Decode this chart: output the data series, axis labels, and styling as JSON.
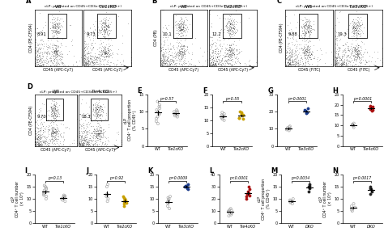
{
  "flow_panels": {
    "A": {
      "title": "cLP: pregated on CD45+CD3e+ (% CD45+)",
      "wt_val": "8.91",
      "ko_val": "9.73",
      "xlabel": "CD45 (APC-Cy7)",
      "ylabel": "CD4 (PE-CF594)",
      "ko_label": "Tle1cKO"
    },
    "B": {
      "title": "cLP: pregated on CD45+CD3e+ (% CD45+)",
      "wt_val": "10.1",
      "ko_val": "12.2",
      "xlabel": "CD45 (APC-Cy7)",
      "ylabel": "CD4 (PB)",
      "ko_label": "Tle2cKO"
    },
    "C": {
      "title": "cLP: pregated on CD45+CD3e+ (% CD45+)",
      "wt_val": "9.88",
      "ko_val": "19.3",
      "xlabel": "CD45 (FITC)",
      "ylabel": "CD4 (PE-CF594)",
      "ko_label": "Tle3cKO"
    },
    "D": {
      "title": "cLP: pregated on CD45+CD3e+ (% CD45+)",
      "wt_val": "9.70",
      "ko_val": "18.3",
      "xlabel": "CD45 (APC-Cy7)",
      "ylabel": "CD4 (PE-CF594)",
      "ko_label": "Tle4cKO"
    }
  },
  "scatter_panels": {
    "E": {
      "pval": "p=0.57",
      "xlabel_wt": "WT",
      "xlabel_ko": "Tle1cKO",
      "ylabel": "cLP\nCD4+ T cell proportion\n(% CD45+)",
      "ylim": [
        0,
        15
      ],
      "yticks": [
        0,
        5,
        10,
        15
      ],
      "wt_data": [
        8.0,
        9.2,
        10.0,
        10.5,
        11.0,
        11.5,
        12.0,
        8.5,
        7.2,
        9.5,
        13.0,
        6.5
      ],
      "ko_data": [
        8.5,
        9.0,
        9.5,
        10.0,
        10.5,
        9.2,
        9.8,
        10.2,
        8.8,
        9.3
      ],
      "wt_color": "#aaaaaa",
      "ko_color": "#aaaaaa",
      "ko_filled": false
    },
    "F": {
      "pval": "p=0.55",
      "xlabel_wt": "WT",
      "xlabel_ko": "Tle2cKO",
      "ylabel": "",
      "ylim": [
        0,
        20
      ],
      "yticks": [
        0,
        5,
        10,
        15,
        20
      ],
      "wt_data": [
        10.0,
        11.0,
        12.0,
        12.5,
        13.0,
        11.5,
        10.5,
        11.8
      ],
      "ko_data": [
        10.5,
        11.0,
        12.0,
        13.0,
        12.5,
        11.8,
        10.8,
        13.5,
        12.2
      ],
      "wt_color": "#aaaaaa",
      "ko_color": "#c8a000",
      "ko_filled": true
    },
    "G": {
      "pval": "p=0.0001",
      "xlabel_wt": "WT",
      "xlabel_ko": "Tle3cKO",
      "ylabel": "",
      "ylim": [
        0,
        30
      ],
      "yticks": [
        0,
        10,
        20,
        30
      ],
      "wt_data": [
        9.0,
        10.0,
        10.5,
        11.0,
        11.5,
        10.0,
        9.5,
        10.2
      ],
      "ko_data": [
        19.0,
        20.0,
        21.0,
        22.0,
        20.5,
        19.5
      ],
      "wt_color": "#aaaaaa",
      "ko_color": "#1a3a8a",
      "ko_filled": true
    },
    "H": {
      "pval": "p=0.0001",
      "xlabel_wt": "WT",
      "xlabel_ko": "Tle4cKO",
      "ylabel": "",
      "ylim": [
        0,
        25
      ],
      "yticks": [
        0,
        5,
        10,
        15,
        20,
        25
      ],
      "wt_data": [
        9.0,
        10.0,
        10.5,
        11.0,
        10.2,
        9.8,
        10.5,
        10.0
      ],
      "ko_data": [
        17.0,
        18.0,
        19.0,
        19.5,
        18.5,
        17.5,
        18.0,
        19.2
      ],
      "wt_color": "#aaaaaa",
      "ko_color": "#aa1111",
      "ko_filled": true
    },
    "I": {
      "pval": "p=0.13",
      "xlabel_wt": "WT",
      "xlabel_ko": "Tle1cKO",
      "ylabel": "cLP\nCD4+ T cell number\n(x 10^6)",
      "ylim": [
        0,
        20
      ],
      "yticks": [
        0,
        5,
        10,
        15,
        20
      ],
      "wt_data": [
        11.0,
        12.0,
        13.0,
        14.0,
        15.0,
        15.5,
        13.5,
        14.5,
        12.5,
        11.5,
        10.0
      ],
      "ko_data": [
        9.0,
        10.0,
        11.0,
        10.5,
        11.5,
        10.8,
        9.5,
        11.2
      ],
      "wt_color": "#aaaaaa",
      "ko_color": "#aaaaaa",
      "ko_filled": false
    },
    "J": {
      "pval": "p=0.92",
      "xlabel_wt": "WT",
      "xlabel_ko": "Tle2cKO",
      "ylabel": "",
      "ylim": [
        0,
        20
      ],
      "yticks": [
        0,
        5,
        10,
        15,
        20
      ],
      "wt_data": [
        9.0,
        10.0,
        11.0,
        16.0,
        15.0,
        11.5,
        12.0
      ],
      "ko_data": [
        7.0,
        8.0,
        9.0,
        10.0,
        11.0,
        9.5,
        8.5,
        10.5
      ],
      "wt_color": "#aaaaaa",
      "ko_color": "#c8a000",
      "ko_filled": true
    },
    "K": {
      "pval": "p=0.0009",
      "xlabel_wt": "WT",
      "xlabel_ko": "Tle3cKO",
      "ylabel": "",
      "ylim": [
        0,
        20
      ],
      "yticks": [
        0,
        5,
        10,
        15,
        20
      ],
      "wt_data": [
        7.0,
        8.0,
        9.0,
        10.0,
        11.0,
        9.5,
        8.5,
        10.5,
        6.0
      ],
      "ko_data": [
        14.0,
        15.0,
        15.5,
        16.0,
        15.2,
        14.5
      ],
      "wt_color": "#aaaaaa",
      "ko_color": "#1a3a8a",
      "ko_filled": true
    },
    "L": {
      "pval": "p<0.0001",
      "xlabel_wt": "WT",
      "xlabel_ko": "Tle4cKO",
      "ylabel": "",
      "ylim": [
        0,
        40
      ],
      "yticks": [
        0,
        10,
        20,
        30,
        40
      ],
      "wt_data": [
        7.0,
        8.0,
        9.0,
        10.0,
        11.0,
        9.5,
        8.5,
        10.5,
        6.0,
        12.0
      ],
      "ko_data": [
        20.0,
        22.0,
        24.0,
        25.0,
        26.0,
        28.0,
        30.0,
        23.0
      ],
      "wt_color": "#aaaaaa",
      "ko_color": "#aa1111",
      "ko_filled": true
    },
    "M": {
      "pval": "p=0.0034",
      "xlabel_wt": "WT",
      "xlabel_ko": "DKO",
      "ylabel": "cLP\nCD4+ T cell proportion\n(% CD45+)",
      "ylim": [
        0,
        20
      ],
      "yticks": [
        0,
        5,
        10,
        15,
        20
      ],
      "wt_data": [
        8.0,
        9.0,
        9.5,
        10.0,
        8.5,
        9.2,
        8.8
      ],
      "ko_data": [
        13.0,
        14.5,
        15.0,
        16.0,
        15.5
      ],
      "wt_color": "#aaaaaa",
      "ko_color": "#222222",
      "ko_filled": true
    },
    "N": {
      "pval": "p=0.0017",
      "xlabel_wt": "WT",
      "xlabel_ko": "DKO",
      "ylabel": "cLP\nCD4+ T cell number\n(x 10^6)",
      "ylim": [
        0,
        20
      ],
      "yticks": [
        0,
        5,
        10,
        15,
        20
      ],
      "wt_data": [
        5.0,
        6.0,
        7.0,
        8.0,
        6.5,
        5.5
      ],
      "ko_data": [
        12.0,
        13.0,
        14.0,
        15.0,
        14.5
      ],
      "wt_color": "#aaaaaa",
      "ko_color": "#222222",
      "ko_filled": true
    }
  }
}
